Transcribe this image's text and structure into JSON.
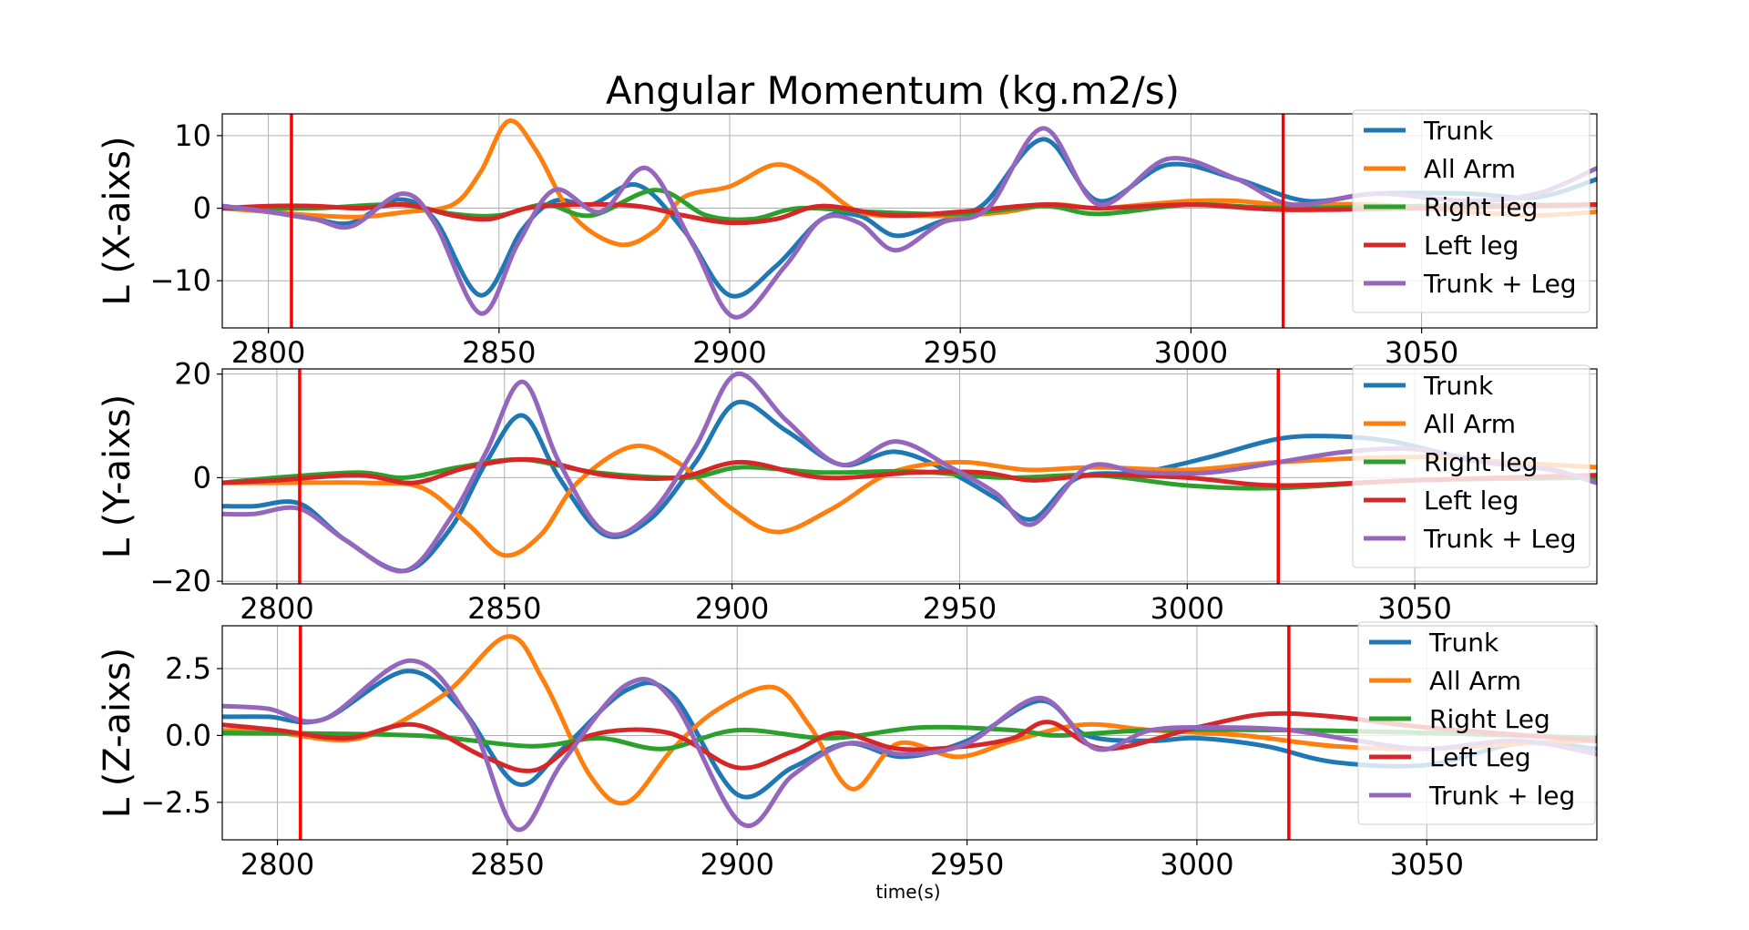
{
  "figure": {
    "title": "Angular Momentum (kg.m2/s)",
    "xlabel": "time(s)"
  },
  "colors": {
    "Trunk": "#1f77b4",
    "All Arm": "#ff7f0e",
    "Right leg": "#2ca02c",
    "Left leg": "#d62728",
    "Trunk + Leg": "#9467bd",
    "marker": "#ff0000"
  },
  "chart_data": [
    {
      "type": "line",
      "title": "Angular Momentum (kg.m2/s)",
      "xlabel": "",
      "ylabel": "L (X-aixs)",
      "xlim": [
        2790,
        3088
      ],
      "ylim": [
        -16.5,
        13
      ],
      "xticks": [
        2800,
        2850,
        2900,
        2950,
        3000,
        3050
      ],
      "xtick_labels": [
        "2800",
        "2850",
        "2900",
        "2950",
        "3000",
        "3050"
      ],
      "yticks": [
        10,
        0,
        -10
      ],
      "ytick_labels": [
        "10",
        "0",
        "−10"
      ],
      "grid": true,
      "legend_position": "top-right",
      "vlines": [
        2805,
        3020
      ],
      "series": [
        {
          "name": "Trunk",
          "x": [
            2790,
            2800,
            2810,
            2818,
            2828,
            2836,
            2846,
            2855,
            2862,
            2870,
            2880,
            2890,
            2900,
            2910,
            2920,
            2928,
            2936,
            2945,
            2955,
            2968,
            2980,
            2995,
            3010,
            3025,
            3040,
            3060,
            3075,
            3088
          ],
          "y": [
            0.3,
            -0.5,
            -1.5,
            -2,
            1.2,
            -1.5,
            -12,
            -3,
            1,
            0.5,
            3.2,
            -3,
            -12,
            -8,
            -1.5,
            -1,
            -3.8,
            -2,
            0.5,
            9.5,
            1,
            6,
            4,
            1,
            2,
            2,
            1.5,
            4
          ]
        },
        {
          "name": "All Arm",
          "x": [
            2790,
            2800,
            2810,
            2820,
            2830,
            2840,
            2846,
            2852,
            2858,
            2866,
            2876,
            2884,
            2890,
            2900,
            2910,
            2918,
            2928,
            2940,
            2950,
            2960,
            2970,
            2980,
            2990,
            3000,
            3010,
            3020,
            3040,
            3060,
            3075,
            3088
          ],
          "y": [
            0,
            -0.5,
            -1,
            -1.2,
            -0.5,
            0.5,
            5,
            12,
            8,
            -1,
            -5,
            -3,
            1.5,
            3,
            6,
            4,
            -0.5,
            -1,
            -1,
            -0.5,
            0.5,
            0,
            0.5,
            1,
            1,
            0.5,
            0.5,
            -0.5,
            -1,
            -0.5
          ]
        },
        {
          "name": "Right leg",
          "x": [
            2790,
            2810,
            2828,
            2840,
            2850,
            2860,
            2870,
            2884,
            2895,
            2905,
            2915,
            2930,
            2950,
            2968,
            2980,
            3000,
            3020,
            3050,
            3088
          ],
          "y": [
            0,
            0,
            0.5,
            -0.8,
            -1,
            0.5,
            -1,
            2.5,
            -1,
            -1.5,
            0,
            -0.5,
            -0.8,
            0.3,
            -0.8,
            0.5,
            0,
            0.3,
            0.5
          ]
        },
        {
          "name": "Left leg",
          "x": [
            2790,
            2800,
            2810,
            2820,
            2830,
            2840,
            2848,
            2856,
            2866,
            2880,
            2890,
            2900,
            2910,
            2920,
            2935,
            2950,
            2968,
            2980,
            3000,
            3020,
            3050,
            3088
          ],
          "y": [
            0,
            0.3,
            0.3,
            0,
            0.5,
            -1,
            -1.5,
            0,
            0.5,
            0.3,
            -1,
            -2,
            -1.5,
            0.3,
            -1,
            -0.5,
            0.5,
            0,
            0.5,
            -0.2,
            0,
            0.5
          ]
        },
        {
          "name": "Trunk + Leg",
          "x": [
            2790,
            2800,
            2810,
            2818,
            2829,
            2836,
            2846,
            2854,
            2862,
            2872,
            2882,
            2892,
            2901,
            2912,
            2920,
            2928,
            2936,
            2946,
            2956,
            2968,
            2980,
            2995,
            3010,
            3022,
            3040,
            3060,
            3075,
            3088
          ],
          "y": [
            0.3,
            -0.5,
            -1.5,
            -2.5,
            2,
            -2,
            -14.5,
            -5,
            2.5,
            -0.5,
            5.5,
            -5,
            -15,
            -8,
            -1.5,
            -2,
            -5.8,
            -2,
            0,
            11,
            0.5,
            6.8,
            4,
            0.5,
            2,
            1,
            2,
            5.5
          ]
        }
      ]
    },
    {
      "type": "line",
      "xlabel": "",
      "ylabel": "L (Y-aixs)",
      "xlim": [
        2788,
        3090
      ],
      "ylim": [
        -20.5,
        21
      ],
      "xticks": [
        2800,
        2850,
        2900,
        2950,
        3000,
        3050
      ],
      "xtick_labels": [
        "2800",
        "2850",
        "2900",
        "2950",
        "3000",
        "3050"
      ],
      "yticks": [
        20,
        0,
        -20
      ],
      "ytick_labels": [
        "20",
        "0",
        "−20"
      ],
      "grid": true,
      "legend_position": "top-right",
      "vlines": [
        2805,
        3020
      ],
      "series": [
        {
          "name": "Trunk",
          "x": [
            2788,
            2795,
            2805,
            2815,
            2828,
            2838,
            2846,
            2854,
            2862,
            2872,
            2882,
            2892,
            2901,
            2912,
            2924,
            2936,
            2948,
            2958,
            2966,
            2976,
            2990,
            3005,
            3020,
            3032,
            3045,
            3060,
            3078,
            3090
          ],
          "y": [
            -5.5,
            -5.5,
            -5,
            -12,
            -18,
            -10,
            3,
            12,
            0,
            -11,
            -8,
            3,
            14.5,
            9,
            2.5,
            5,
            1,
            -4,
            -8,
            0,
            1,
            4,
            7.5,
            8,
            7,
            4,
            2,
            -1
          ]
        },
        {
          "name": "All Arm",
          "x": [
            2788,
            2800,
            2820,
            2832,
            2842,
            2850,
            2858,
            2866,
            2878,
            2888,
            2900,
            2910,
            2922,
            2935,
            2950,
            2965,
            2980,
            3000,
            3020,
            3050,
            3070,
            3090
          ],
          "y": [
            -1,
            -1,
            -1,
            -2,
            -9,
            -15,
            -11,
            -1,
            6,
            3,
            -6,
            -10.5,
            -6,
            1,
            3,
            1.5,
            2,
            1.5,
            3,
            4,
            3,
            2
          ]
        },
        {
          "name": "Right leg",
          "x": [
            2788,
            2800,
            2818,
            2828,
            2840,
            2854,
            2870,
            2890,
            2902,
            2920,
            2940,
            2960,
            2980,
            3000,
            3020,
            3050,
            3090
          ],
          "y": [
            -1,
            0,
            1,
            0,
            2,
            3.5,
            1,
            0,
            2,
            1,
            1.2,
            0,
            0.5,
            -1.5,
            -2,
            -0.5,
            0
          ]
        },
        {
          "name": "Left leg",
          "x": [
            2788,
            2800,
            2818,
            2830,
            2842,
            2856,
            2872,
            2888,
            2902,
            2920,
            2940,
            2955,
            2966,
            2980,
            3000,
            3020,
            3050,
            3090
          ],
          "y": [
            -1,
            -0.5,
            0.5,
            -1,
            2,
            3.5,
            0.5,
            0,
            3,
            0,
            1,
            1,
            -0.5,
            0.5,
            0,
            -1.5,
            -0.5,
            0.5
          ]
        },
        {
          "name": "Trunk + Leg",
          "x": [
            2788,
            2795,
            2805,
            2815,
            2828,
            2838,
            2846,
            2854,
            2862,
            2872,
            2882,
            2892,
            2901,
            2912,
            2924,
            2936,
            2948,
            2958,
            2966,
            2978,
            2990,
            3005,
            3020,
            3035,
            3050,
            3065,
            3080,
            3090
          ],
          "y": [
            -7,
            -7,
            -6,
            -12,
            -18,
            -8,
            5,
            18.5,
            3,
            -10.5,
            -7,
            6,
            20,
            11,
            2.5,
            7,
            2,
            -3,
            -9,
            2,
            1,
            1,
            3,
            5,
            5.5,
            3,
            1.5,
            -1
          ]
        }
      ]
    },
    {
      "type": "line",
      "xlabel": "time(s)",
      "ylabel": "L (Z-aixs)",
      "xlim": [
        2788,
        3087
      ],
      "ylim": [
        -3.9,
        4.1
      ],
      "xticks": [
        2800,
        2850,
        2900,
        2950,
        3000,
        3050
      ],
      "xtick_labels": [
        "2800",
        "2850",
        "2900",
        "2950",
        "3000",
        "3050"
      ],
      "yticks": [
        2.5,
        0.0,
        -2.5
      ],
      "ytick_labels": [
        "2.5",
        "0.0",
        "−2.5"
      ],
      "grid": true,
      "legend_position": "top-right",
      "vlines": [
        2805,
        3020
      ],
      "series": [
        {
          "name": "Trunk",
          "x": [
            2788,
            2798,
            2810,
            2828,
            2840,
            2852,
            2862,
            2876,
            2886,
            2900,
            2912,
            2924,
            2936,
            2950,
            2966,
            2976,
            2990,
            3000,
            3015,
            3030,
            3050,
            3070,
            3087
          ],
          "y": [
            0.7,
            0.7,
            0.6,
            2.4,
            1,
            -1.8,
            -0.5,
            1.7,
            1.5,
            -2.2,
            -1.2,
            -0.3,
            -0.8,
            -0.2,
            1.3,
            0,
            -0.2,
            -0.1,
            -0.4,
            -1,
            -1.1,
            -0.3,
            -0.5
          ]
        },
        {
          "name": "All Arm",
          "x": [
            2788,
            2800,
            2818,
            2836,
            2850,
            2858,
            2868,
            2876,
            2886,
            2896,
            2908,
            2916,
            2925,
            2935,
            2948,
            2960,
            2975,
            2990,
            3010,
            3030,
            3050,
            3070,
            3087
          ],
          "y": [
            0.2,
            0.1,
            -0.1,
            1.5,
            3.7,
            2,
            -1.5,
            -2.5,
            -0.5,
            1,
            1.8,
            0.3,
            -2,
            -0.3,
            -0.8,
            -0.2,
            0.4,
            0.2,
            0,
            -0.4,
            -0.5,
            -0.3,
            -0.2
          ]
        },
        {
          "name": "Right Leg",
          "x": [
            2788,
            2830,
            2855,
            2870,
            2884,
            2900,
            2920,
            2940,
            2960,
            2970,
            2990,
            3020,
            3050,
            3087
          ],
          "y": [
            0.1,
            0,
            -0.4,
            -0.1,
            -0.5,
            0.2,
            -0.1,
            0.3,
            0.2,
            0,
            0.2,
            0.2,
            0.1,
            -0.1
          ]
        },
        {
          "name": "Left Leg",
          "x": [
            2788,
            2800,
            2815,
            2830,
            2845,
            2856,
            2868,
            2885,
            2900,
            2912,
            2922,
            2935,
            2950,
            2960,
            2968,
            2980,
            3000,
            3015,
            3030,
            3050,
            3087
          ],
          "y": [
            0.4,
            0.2,
            -0.1,
            0.4,
            -0.8,
            -1.3,
            0,
            0.1,
            -1.2,
            -0.6,
            0.1,
            -0.5,
            -0.4,
            -0.1,
            0.5,
            -0.5,
            0.3,
            0.8,
            0.7,
            0.3,
            -0.2
          ]
        },
        {
          "name": "Trunk + leg",
          "x": [
            2788,
            2798,
            2810,
            2829,
            2842,
            2852,
            2862,
            2876,
            2886,
            2901,
            2912,
            2924,
            2936,
            2950,
            2966,
            2978,
            2990,
            3005,
            3020,
            3035,
            3050,
            3070,
            3087
          ],
          "y": [
            1.1,
            1,
            0.6,
            2.8,
            0.5,
            -3.5,
            -1,
            1.9,
            1.3,
            -3.3,
            -1.5,
            -0.3,
            -0.7,
            -0.3,
            1.4,
            -0.5,
            0.2,
            0.3,
            0.2,
            -0.2,
            -0.5,
            -0.2,
            -0.7
          ]
        }
      ]
    }
  ]
}
